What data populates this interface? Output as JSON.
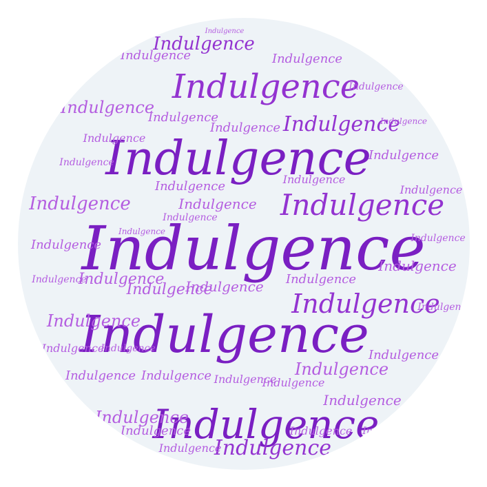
{
  "word": "Indulgence",
  "colors": {
    "background": "#ffffff",
    "circle": "#eef3f7",
    "dark_purple": "#7a1fc2",
    "mid_purple": "#9333d0",
    "light_purple": "#b45de0"
  }
}
